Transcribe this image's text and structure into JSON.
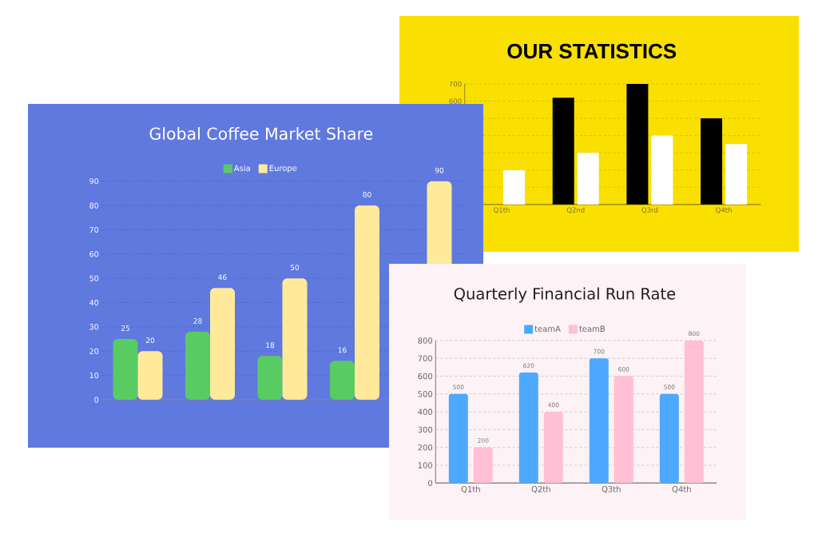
{
  "chart_data": [
    {
      "type": "bar",
      "title": "OUR STATISTICS",
      "categories": [
        "Q1th",
        "Q2nd",
        "Q3rd",
        "Q4th"
      ],
      "series": [
        {
          "color": "#000000",
          "values": [
            null,
            620,
            700,
            500
          ]
        },
        {
          "color": "#ffffff",
          "values": [
            200,
            300,
            400,
            350
          ]
        }
      ],
      "ylim": [
        0,
        700
      ],
      "yticks": [
        {
          "value": 0,
          "label": null
        },
        {
          "value": 100,
          "label": null
        },
        {
          "value": 200,
          "label": null
        },
        {
          "value": 300,
          "label": null
        },
        {
          "value": 400,
          "label": null
        },
        {
          "value": 500,
          "label": null
        },
        600,
        700
      ],
      "grid": "y"
    },
    {
      "type": "bar",
      "title": "Global Coffee Market Share",
      "categories": [
        null,
        null,
        null,
        null,
        null
      ],
      "series": [
        {
          "name": "Asia",
          "color": "#58cc63",
          "values": [
            25,
            28,
            18,
            16,
            null
          ]
        },
        {
          "name": "Europe",
          "color": "#ffe99a",
          "values": [
            20,
            46,
            50,
            80,
            90
          ]
        }
      ],
      "ylim": [
        0,
        90
      ],
      "yticks": [
        0,
        10,
        20,
        30,
        40,
        50,
        60,
        70,
        80,
        90
      ],
      "grid": "y",
      "legend": "top",
      "data_labels": true
    },
    {
      "type": "bar",
      "title": "Quarterly Financial Run Rate",
      "categories": [
        "Q1th",
        "Q2th",
        "Q3th",
        "Q4th"
      ],
      "series": [
        {
          "name": "teamA",
          "color": "#4da9ff",
          "values": [
            500,
            620,
            700,
            500
          ]
        },
        {
          "name": "teamB",
          "color": "#ffbfd4",
          "values": [
            200,
            400,
            600,
            800
          ]
        }
      ],
      "ylim": [
        0,
        800
      ],
      "yticks": [
        0,
        100,
        200,
        300,
        400,
        500,
        600,
        700,
        800
      ],
      "grid": "y",
      "legend": "top",
      "data_labels": true
    }
  ]
}
